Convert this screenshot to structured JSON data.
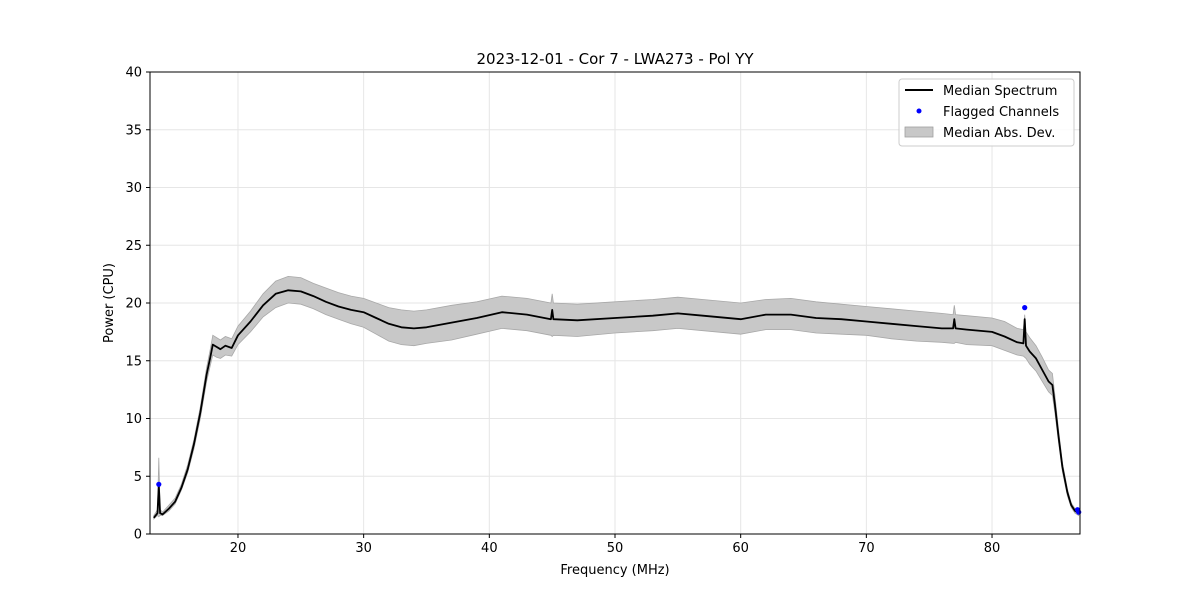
{
  "chart_data": {
    "type": "line",
    "title": "2023-12-01 - Cor 7 - LWA273 - Pol YY",
    "xlabel": "Frequency (MHz)",
    "ylabel": "Power (CPU)",
    "xlim": [
      13,
      87
    ],
    "ylim": [
      0,
      40
    ],
    "xticks": [
      20,
      30,
      40,
      50,
      60,
      70,
      80
    ],
    "yticks": [
      0,
      5,
      10,
      15,
      20,
      25,
      30,
      35,
      40
    ],
    "grid": true,
    "legend_position": "top-right",
    "series": [
      {
        "name": "Median Spectrum",
        "kind": "line",
        "color": "#000000",
        "x": [
          13.3,
          13.6,
          13.7,
          13.8,
          14.0,
          14.5,
          15.0,
          15.5,
          16.0,
          16.5,
          17.0,
          17.5,
          17.8,
          18.0,
          18.3,
          18.6,
          19.0,
          19.5,
          20.0,
          21.0,
          22.0,
          23.0,
          24.0,
          25.0,
          26.0,
          27.0,
          28.0,
          29.0,
          30.0,
          31.0,
          32.0,
          33.0,
          34.0,
          35.0,
          37.0,
          39.0,
          41.0,
          43.0,
          44.9,
          45.0,
          45.1,
          47.0,
          50.0,
          53.0,
          55.0,
          57.0,
          60.0,
          62.0,
          64.0,
          66.0,
          68.0,
          70.0,
          72.0,
          74.0,
          76.0,
          76.9,
          77.0,
          77.1,
          78.0,
          80.0,
          81.0,
          82.0,
          82.5,
          82.6,
          82.7,
          83.0,
          83.5,
          84.0,
          84.5,
          84.8,
          85.0,
          85.3,
          85.6,
          86.0,
          86.3,
          86.6,
          86.9
        ],
        "y": [
          1.4,
          1.8,
          4.2,
          1.8,
          1.7,
          2.2,
          2.8,
          4.0,
          5.6,
          7.8,
          10.5,
          13.8,
          15.3,
          16.4,
          16.2,
          16.0,
          16.3,
          16.1,
          17.2,
          18.4,
          19.8,
          20.8,
          21.1,
          21.0,
          20.6,
          20.1,
          19.7,
          19.4,
          19.2,
          18.7,
          18.2,
          17.9,
          17.8,
          17.9,
          18.3,
          18.7,
          19.2,
          19.0,
          18.6,
          19.4,
          18.6,
          18.5,
          18.7,
          18.9,
          19.1,
          18.9,
          18.6,
          19.0,
          19.0,
          18.7,
          18.6,
          18.4,
          18.2,
          18.0,
          17.8,
          17.8,
          18.6,
          17.8,
          17.7,
          17.5,
          17.1,
          16.6,
          16.5,
          18.6,
          16.3,
          15.8,
          15.2,
          14.2,
          13.2,
          12.9,
          11.2,
          8.4,
          5.8,
          3.6,
          2.5,
          2.0,
          1.8
        ]
      },
      {
        "name": "Flagged Channels",
        "kind": "scatter",
        "color": "#0000ff",
        "x": [
          13.7,
          82.6,
          86.8,
          86.9
        ],
        "y": [
          4.3,
          19.6,
          2.1,
          1.9
        ]
      },
      {
        "name": "Median Abs. Dev.",
        "kind": "band",
        "color": "#c8c8c8",
        "x": [
          13.3,
          13.6,
          13.7,
          13.8,
          14.0,
          14.5,
          15.0,
          15.5,
          16.0,
          16.5,
          17.0,
          17.5,
          17.8,
          18.0,
          18.3,
          18.6,
          19.0,
          19.5,
          20.0,
          21.0,
          22.0,
          23.0,
          24.0,
          25.0,
          26.0,
          27.0,
          28.0,
          29.0,
          30.0,
          31.0,
          32.0,
          33.0,
          34.0,
          35.0,
          37.0,
          39.0,
          41.0,
          43.0,
          44.9,
          45.0,
          45.1,
          47.0,
          50.0,
          53.0,
          55.0,
          57.0,
          60.0,
          62.0,
          64.0,
          66.0,
          68.0,
          70.0,
          72.0,
          74.0,
          76.0,
          76.9,
          77.0,
          77.1,
          78.0,
          80.0,
          81.0,
          82.0,
          82.5,
          82.6,
          82.7,
          83.0,
          83.5,
          84.0,
          84.5,
          84.8,
          85.0,
          85.3,
          85.6,
          86.0,
          86.3,
          86.6,
          86.9
        ],
        "lower": [
          1.3,
          1.6,
          1.5,
          1.6,
          1.6,
          2.0,
          2.6,
          3.8,
          5.3,
          7.4,
          10.0,
          13.2,
          14.6,
          15.5,
          15.3,
          15.2,
          15.5,
          15.4,
          16.4,
          17.5,
          18.8,
          19.6,
          20.0,
          19.9,
          19.5,
          19.0,
          18.6,
          18.2,
          17.9,
          17.3,
          16.7,
          16.4,
          16.3,
          16.5,
          16.8,
          17.3,
          17.8,
          17.6,
          17.2,
          17.1,
          17.2,
          17.1,
          17.4,
          17.6,
          17.8,
          17.6,
          17.3,
          17.7,
          17.7,
          17.4,
          17.3,
          17.2,
          16.9,
          16.7,
          16.6,
          16.5,
          16.5,
          16.6,
          16.4,
          16.3,
          15.9,
          15.5,
          15.4,
          15.3,
          15.2,
          14.7,
          14.1,
          13.2,
          12.3,
          12.0,
          10.5,
          7.9,
          5.4,
          3.3,
          2.3,
          1.8,
          1.6
        ],
        "upper": [
          1.6,
          2.1,
          6.6,
          2.1,
          1.9,
          2.5,
          3.1,
          4.3,
          6.0,
          8.2,
          11.0,
          14.4,
          16.0,
          17.2,
          17.0,
          16.8,
          17.1,
          16.9,
          18.0,
          19.3,
          20.8,
          21.9,
          22.3,
          22.2,
          21.7,
          21.3,
          20.9,
          20.6,
          20.4,
          20.0,
          19.6,
          19.4,
          19.3,
          19.4,
          19.8,
          20.1,
          20.6,
          20.4,
          20.0,
          20.8,
          20.0,
          19.9,
          20.1,
          20.3,
          20.5,
          20.3,
          20.0,
          20.3,
          20.4,
          20.1,
          19.9,
          19.7,
          19.5,
          19.3,
          19.1,
          19.0,
          19.8,
          19.0,
          18.9,
          18.7,
          18.4,
          17.8,
          17.7,
          19.0,
          17.5,
          17.0,
          16.3,
          15.3,
          14.2,
          13.9,
          12.0,
          9.0,
          6.2,
          3.9,
          2.7,
          2.2,
          2.0
        ]
      }
    ]
  }
}
